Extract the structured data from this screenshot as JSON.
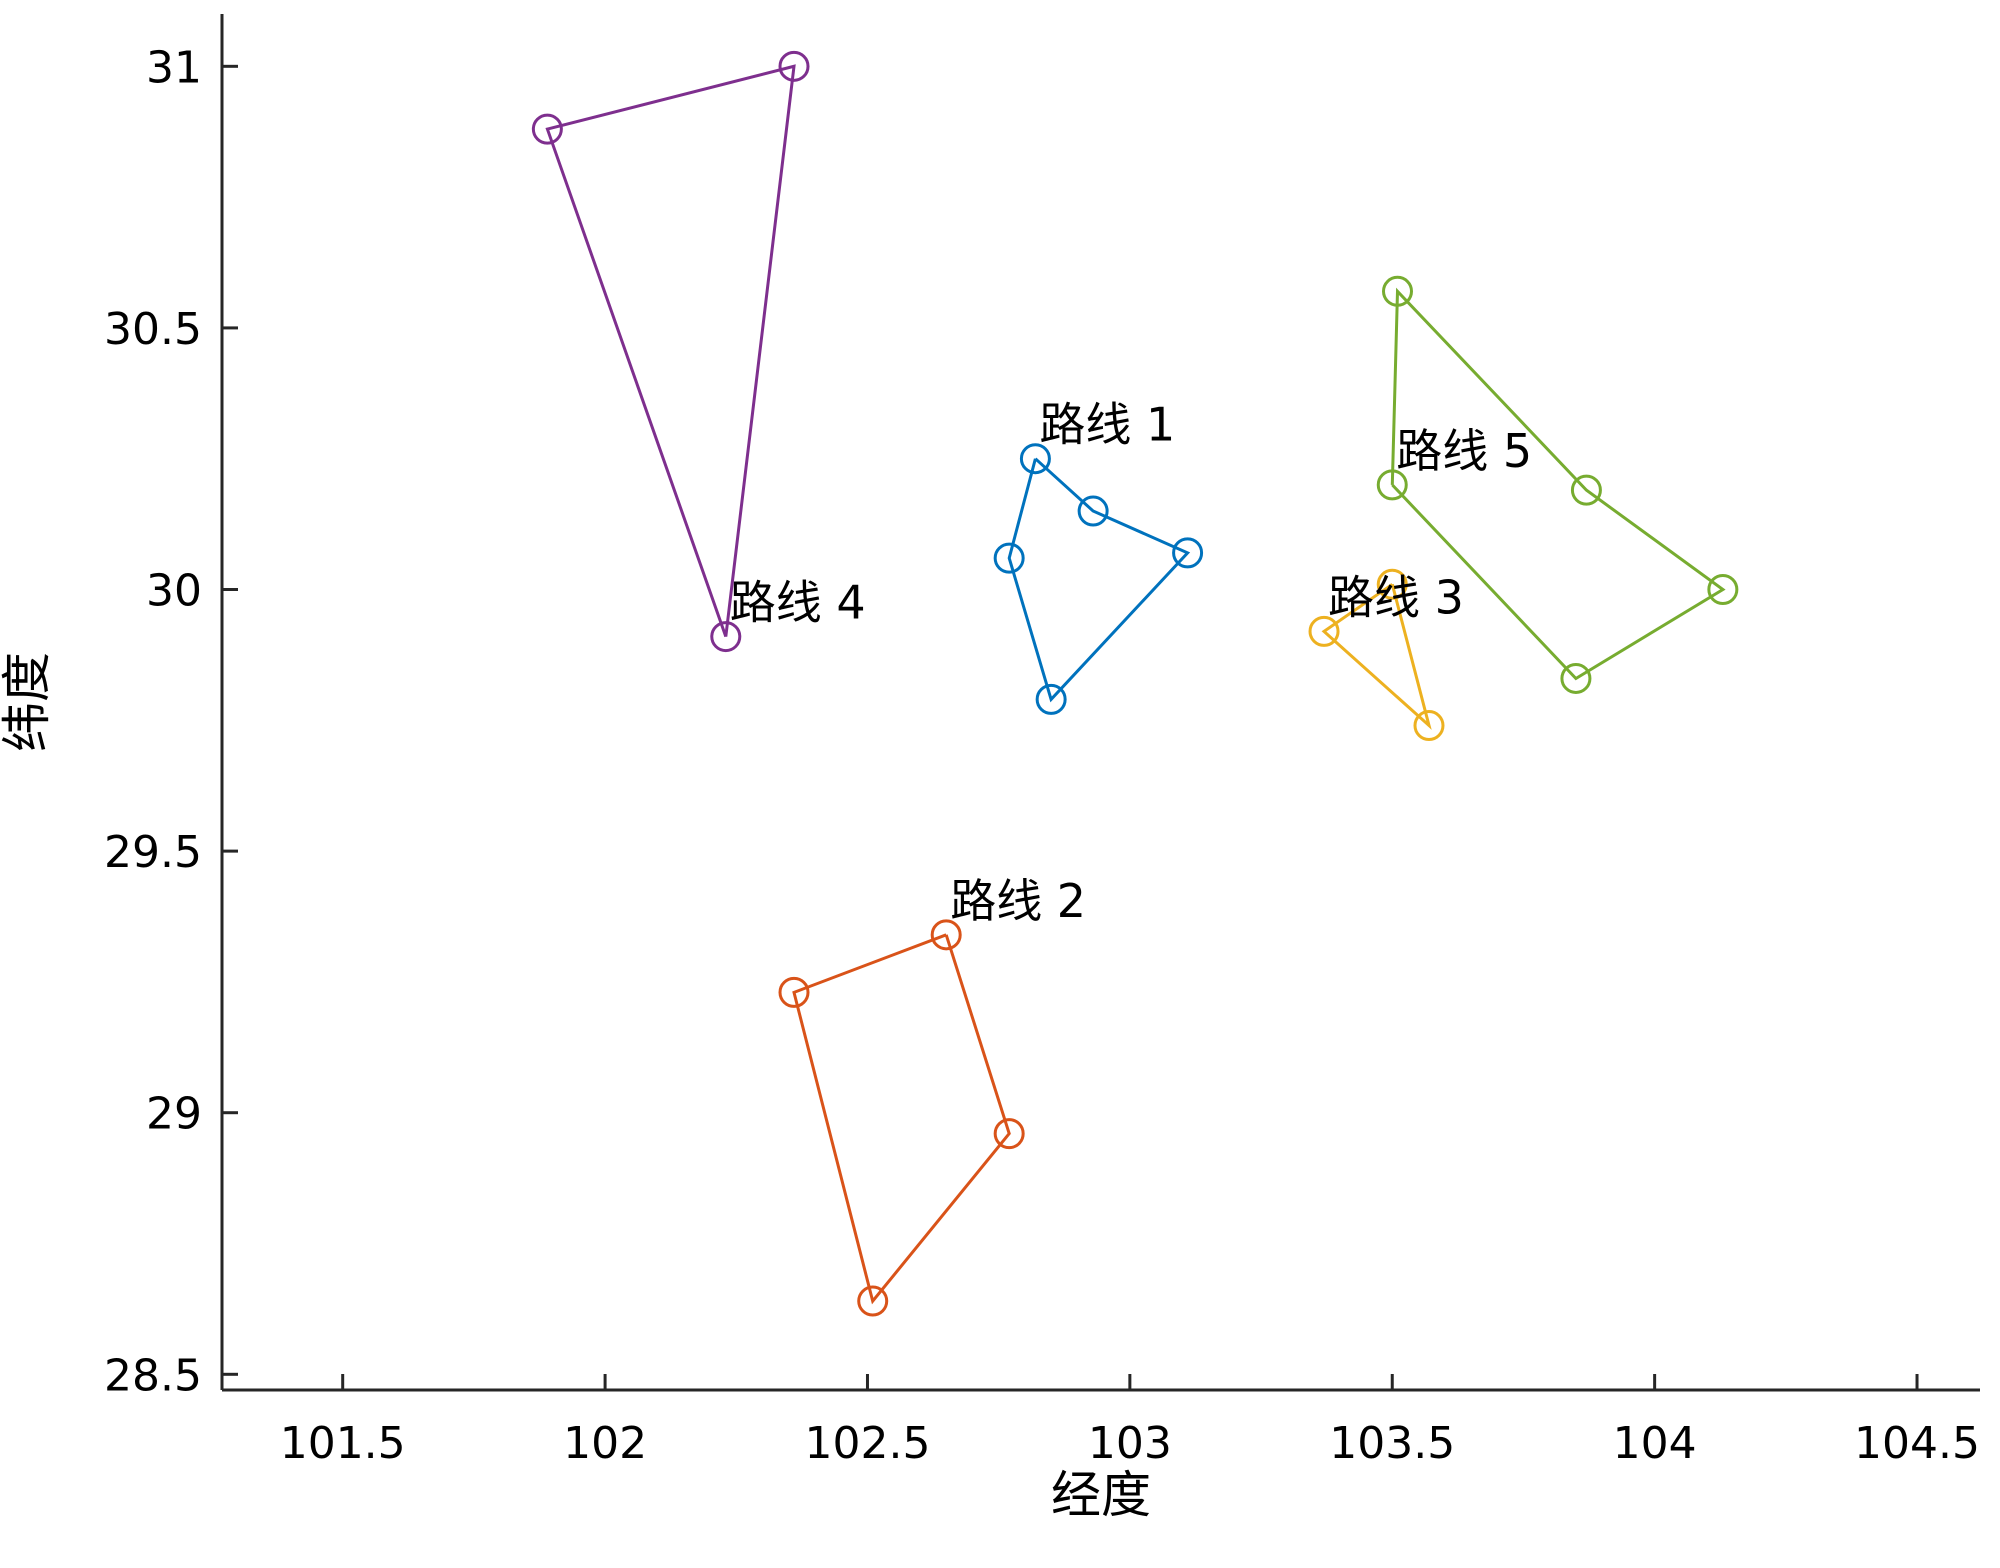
{
  "chart_data": {
    "type": "line",
    "title": "",
    "xlabel": "经度",
    "ylabel": "纬度",
    "xlim": [
      101.27,
      104.62
    ],
    "ylim": [
      28.47,
      31.1
    ],
    "xticks": [
      101.5,
      102,
      102.5,
      103,
      103.5,
      104,
      104.5
    ],
    "xtick_labels": [
      "101.5",
      "102",
      "102.5",
      "103",
      "103.5",
      "104",
      "104.5"
    ],
    "yticks": [
      28.5,
      29,
      29.5,
      30,
      30.5,
      31
    ],
    "ytick_labels": [
      "28.5",
      "29",
      "29.5",
      "30",
      "30.5",
      "31"
    ],
    "grid": false,
    "legend": "none",
    "marker": "circle-open",
    "series": [
      {
        "name": "路线 1",
        "color": "#0072BD",
        "points": [
          [
            102.82,
            30.25
          ],
          [
            102.93,
            30.15
          ],
          [
            103.11,
            30.07
          ],
          [
            102.85,
            29.79
          ],
          [
            102.77,
            30.06
          ],
          [
            102.82,
            30.25
          ]
        ]
      },
      {
        "name": "路线 2",
        "color": "#D95319",
        "points": [
          [
            102.65,
            29.34
          ],
          [
            102.77,
            28.96
          ],
          [
            102.51,
            28.64
          ],
          [
            102.36,
            29.23
          ],
          [
            102.65,
            29.34
          ]
        ]
      },
      {
        "name": "路线 3",
        "color": "#EDB120",
        "points": [
          [
            103.5,
            30.01
          ],
          [
            103.57,
            29.74
          ],
          [
            103.37,
            29.92
          ],
          [
            103.5,
            30.01
          ]
        ]
      },
      {
        "name": "路线 4",
        "color": "#7E2F8E",
        "points": [
          [
            102.23,
            29.91
          ],
          [
            101.89,
            30.88
          ],
          [
            102.36,
            31.0
          ],
          [
            102.23,
            29.91
          ]
        ]
      },
      {
        "name": "路线 5",
        "color": "#77AC30",
        "points": [
          [
            103.5,
            30.2
          ],
          [
            103.51,
            30.57
          ],
          [
            103.87,
            30.19
          ],
          [
            104.13,
            30.0
          ],
          [
            103.85,
            29.83
          ],
          [
            103.5,
            30.2
          ]
        ]
      }
    ],
    "annotations": [
      {
        "text": "路线 1",
        "x": 102.82,
        "y": 30.25
      },
      {
        "text": "路线 2",
        "x": 102.65,
        "y": 29.34
      },
      {
        "text": "路线 3",
        "x": 103.37,
        "y": 29.92
      },
      {
        "text": "路线 4",
        "x": 102.23,
        "y": 29.91
      },
      {
        "text": "路线 5",
        "x": 103.5,
        "y": 30.2
      }
    ]
  }
}
